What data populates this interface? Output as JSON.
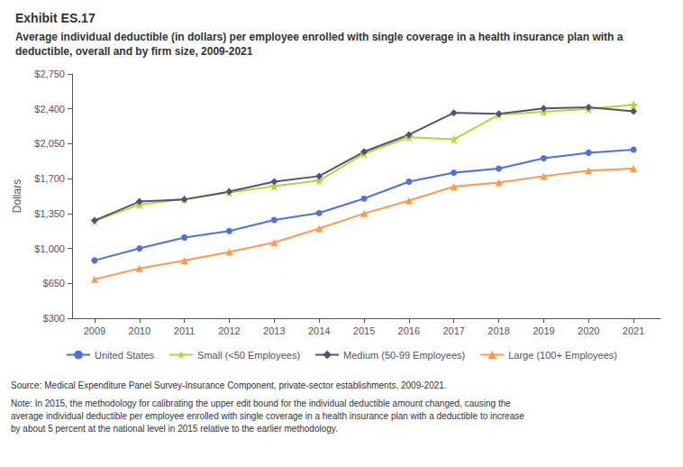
{
  "chart_data": {
    "type": "line",
    "title": "Exhibit ES.17",
    "subtitle": "Average individual deductible (in dollars) per employee enrolled with single coverage in a health insurance plan with a deductible, overall and by firm size, 2009-2021",
    "x": [
      2009,
      2010,
      2011,
      2012,
      2013,
      2014,
      2015,
      2016,
      2017,
      2018,
      2019,
      2020,
      2021
    ],
    "xlim": [
      2008.5,
      2021.6
    ],
    "xticks": [
      2009,
      2010,
      2011,
      2012,
      2013,
      2014,
      2015,
      2016,
      2017,
      2018,
      2019,
      2020,
      2021
    ],
    "ylabel": "Dollars",
    "ylim": [
      300,
      2750
    ],
    "yticks": [
      {
        "value": 300,
        "label": "$300"
      },
      {
        "value": 650,
        "label": "$650"
      },
      {
        "value": 1000,
        "label": "$1,000"
      },
      {
        "value": 1350,
        "label": "$1,350"
      },
      {
        "value": 1700,
        "label": "$1,700"
      },
      {
        "value": 2050,
        "label": "$2,050"
      },
      {
        "value": 2400,
        "label": "$2,400"
      },
      {
        "value": 2750,
        "label": "$2,750"
      }
    ],
    "grid": false,
    "legend": "bottom",
    "series": [
      {
        "name": "United States",
        "marker": "circle",
        "values": [
          880,
          1000,
          1110,
          1175,
          1285,
          1355,
          1500,
          1670,
          1760,
          1800,
          1905,
          1960,
          1990
        ]
      },
      {
        "name": "Small (<50 Employees)",
        "marker": "star",
        "values": [
          1275,
          1440,
          1495,
          1560,
          1625,
          1680,
          1950,
          2115,
          2095,
          2340,
          2370,
          2400,
          2440
        ]
      },
      {
        "name": "Medium (50-99 Employees)",
        "marker": "diamond",
        "values": [
          1280,
          1470,
          1490,
          1570,
          1670,
          1725,
          1970,
          2140,
          2360,
          2350,
          2405,
          2415,
          2375
        ]
      },
      {
        "name": "Large (100+ Employees)",
        "marker": "triangle",
        "values": [
          690,
          800,
          878,
          965,
          1060,
          1200,
          1350,
          1480,
          1620,
          1660,
          1725,
          1780,
          1800
        ]
      }
    ],
    "annotations": [
      "Source: Medical Expenditure Panel Survey-Insurance Component, private-sector establishments, 2009-2021.",
      "Note: In 2015, the methodology for calibrating the upper edit bound for the individual deductible amount changed, causing the average individual deductible per employee enrolled with single coverage in a health insurance plan with a deductible to increase by about 5 percent at the national level in 2015 relative to the earlier methodology."
    ]
  }
}
